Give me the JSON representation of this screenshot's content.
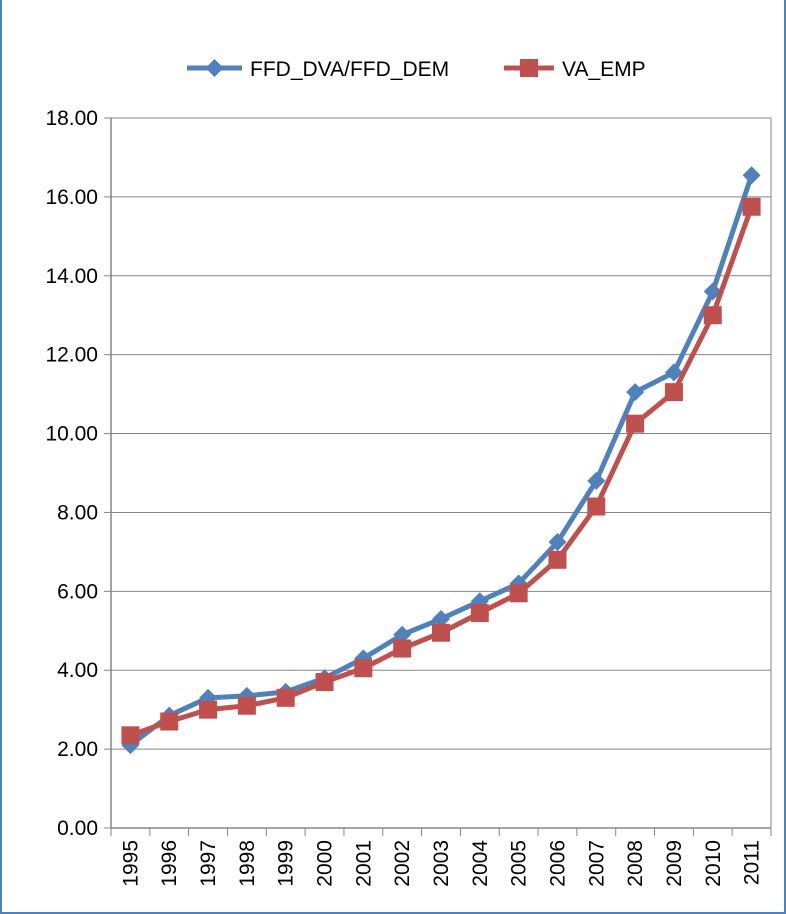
{
  "chart_data": {
    "type": "line",
    "title": "",
    "xlabel": "",
    "ylabel": "",
    "categories": [
      "1995",
      "1996",
      "1997",
      "1998",
      "1999",
      "2000",
      "2001",
      "2002",
      "2003",
      "2004",
      "2005",
      "2006",
      "2007",
      "2008",
      "2009",
      "2010",
      "2011"
    ],
    "ylim": [
      0,
      18
    ],
    "yticks": [
      "0.00",
      "2.00",
      "4.00",
      "6.00",
      "8.00",
      "10.00",
      "12.00",
      "14.00",
      "16.00",
      "18.00"
    ],
    "grid": true,
    "legend_position": "top",
    "series": [
      {
        "name": "FFD_DVA/FFD_DEM",
        "marker": "diamond",
        "color": "#4f81bd",
        "values": [
          2.1,
          2.85,
          3.3,
          3.35,
          3.45,
          3.8,
          4.3,
          4.9,
          5.3,
          5.75,
          6.2,
          7.25,
          8.8,
          11.05,
          11.55,
          13.6,
          16.55
        ]
      },
      {
        "name": "VA_EMP",
        "marker": "square",
        "color": "#c0504d",
        "values": [
          2.35,
          2.7,
          3.0,
          3.1,
          3.3,
          3.7,
          4.05,
          4.55,
          4.95,
          5.45,
          5.95,
          6.8,
          8.15,
          10.25,
          11.05,
          13.0,
          15.75
        ]
      }
    ]
  }
}
